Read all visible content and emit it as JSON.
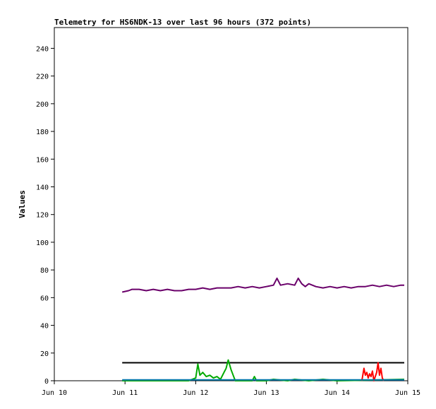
{
  "chart_data": {
    "type": "line",
    "title": "Telemetry for HS6NDK-13 over last 96 hours (372 points)",
    "xlabel": "",
    "ylabel": "Values",
    "x_ticks": [
      "Jun 10",
      "Jun 11",
      "Jun 12",
      "Jun 13",
      "Jun 14",
      "Jun 15"
    ],
    "y_ticks": [
      0,
      20,
      40,
      60,
      80,
      100,
      120,
      140,
      160,
      180,
      200,
      220,
      240
    ],
    "xlim_days": [
      0,
      5
    ],
    "ylim": [
      0,
      255
    ],
    "grid": false,
    "legend": "none",
    "series": [
      {
        "color": "#6a006a",
        "x_days": [
          0.96,
          1.05,
          1.1,
          1.2,
          1.3,
          1.4,
          1.5,
          1.6,
          1.7,
          1.8,
          1.9,
          2.0,
          2.1,
          2.2,
          2.3,
          2.4,
          2.5,
          2.6,
          2.7,
          2.8,
          2.9,
          3.0,
          3.1,
          3.15,
          3.2,
          3.3,
          3.4,
          3.45,
          3.5,
          3.55,
          3.6,
          3.7,
          3.8,
          3.9,
          4.0,
          4.1,
          4.2,
          4.3,
          4.4,
          4.5,
          4.6,
          4.7,
          4.8,
          4.9,
          4.95
        ],
        "values": [
          64,
          65,
          66,
          66,
          65,
          66,
          65,
          66,
          65,
          65,
          66,
          66,
          67,
          66,
          67,
          67,
          67,
          68,
          67,
          68,
          67,
          68,
          69,
          74,
          69,
          70,
          69,
          74,
          70,
          68,
          70,
          68,
          67,
          68,
          67,
          68,
          67,
          68,
          68,
          69,
          68,
          69,
          68,
          69,
          69
        ]
      },
      {
        "color": "#000000",
        "x_days": [
          0.96,
          4.95
        ],
        "values": [
          13,
          13
        ]
      },
      {
        "color": "#00aa00",
        "x_days": [
          0.96,
          1.9,
          2.0,
          2.03,
          2.06,
          2.1,
          2.15,
          2.2,
          2.25,
          2.3,
          2.35,
          2.4,
          2.43,
          2.46,
          2.5,
          2.53,
          2.56,
          2.6,
          2.7,
          2.8,
          2.83,
          2.86,
          3.0,
          3.1,
          3.3,
          3.4,
          3.6,
          3.8,
          4.0,
          4.95
        ],
        "values": [
          0,
          0,
          2,
          12,
          4,
          6,
          3,
          4,
          2,
          3,
          1,
          6,
          9,
          15,
          8,
          4,
          0,
          0,
          0,
          0,
          3,
          0,
          0,
          1,
          0,
          1,
          0,
          1,
          0,
          1
        ]
      },
      {
        "color": "#ff0000",
        "x_days": [
          4.35,
          4.38,
          4.4,
          4.42,
          4.44,
          4.46,
          4.48,
          4.5,
          4.52,
          4.54,
          4.56,
          4.58,
          4.6,
          4.62,
          4.64,
          4.66
        ],
        "values": [
          0,
          9,
          4,
          6,
          2,
          5,
          3,
          7,
          0,
          3,
          6,
          13,
          4,
          9,
          2,
          0
        ]
      },
      {
        "color": "#0077aa",
        "x_days": [
          0.96,
          4.95
        ],
        "values": [
          0.6,
          0.6
        ]
      }
    ]
  }
}
